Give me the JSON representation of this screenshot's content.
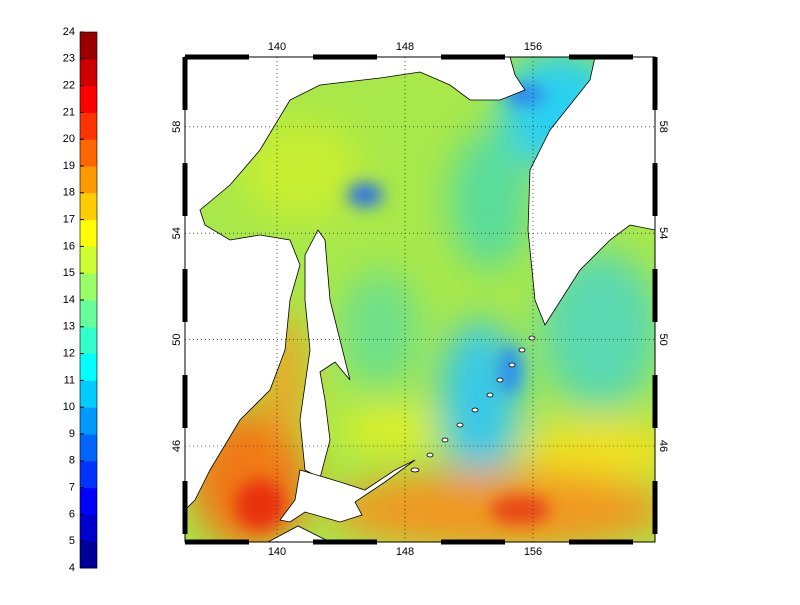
{
  "colorbar": {
    "ticks": [
      4,
      5,
      6,
      7,
      8,
      9,
      10,
      11,
      12,
      13,
      14,
      15,
      16,
      17,
      18,
      19,
      20,
      21,
      22,
      23,
      24
    ]
  },
  "map": {
    "lon_ticks": [
      140,
      148,
      156
    ],
    "lat_ticks": [
      46,
      50,
      54,
      58
    ]
  }
}
